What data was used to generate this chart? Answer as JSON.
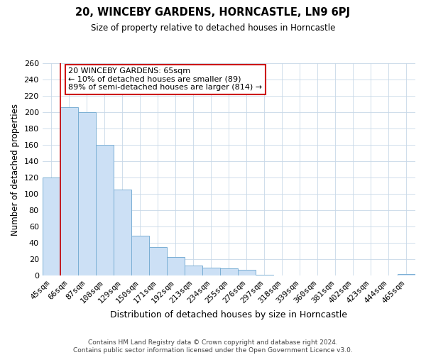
{
  "title": "20, WINCEBY GARDENS, HORNCASTLE, LN9 6PJ",
  "subtitle": "Size of property relative to detached houses in Horncastle",
  "xlabel": "Distribution of detached houses by size in Horncastle",
  "ylabel": "Number of detached properties",
  "bar_labels": [
    "45sqm",
    "66sqm",
    "87sqm",
    "108sqm",
    "129sqm",
    "150sqm",
    "171sqm",
    "192sqm",
    "213sqm",
    "234sqm",
    "255sqm",
    "276sqm",
    "297sqm",
    "318sqm",
    "339sqm",
    "360sqm",
    "381sqm",
    "402sqm",
    "423sqm",
    "444sqm",
    "465sqm"
  ],
  "bar_heights": [
    120,
    206,
    200,
    160,
    105,
    49,
    35,
    23,
    12,
    10,
    9,
    7,
    1,
    0,
    0,
    0,
    0,
    0,
    0,
    0,
    2
  ],
  "bar_color": "#cce0f5",
  "bar_edge_color": "#7aafd4",
  "vline_color": "#cc0000",
  "annotation_title": "20 WINCEBY GARDENS: 65sqm",
  "annotation_line1": "← 10% of detached houses are smaller (89)",
  "annotation_line2": "89% of semi-detached houses are larger (814) →",
  "annotation_box_edge": "#cc0000",
  "ylim": [
    0,
    260
  ],
  "yticks": [
    0,
    20,
    40,
    60,
    80,
    100,
    120,
    140,
    160,
    180,
    200,
    220,
    240,
    260
  ],
  "footer_line1": "Contains HM Land Registry data © Crown copyright and database right 2024.",
  "footer_line2": "Contains public sector information licensed under the Open Government Licence v3.0.",
  "background_color": "#ffffff",
  "grid_color": "#c8d8e8"
}
